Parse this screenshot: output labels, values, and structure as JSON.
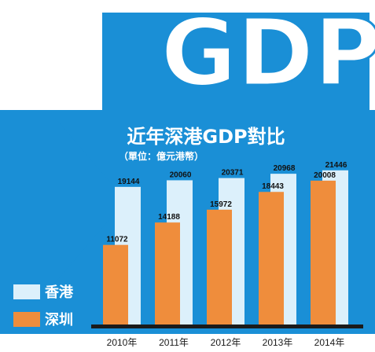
{
  "big_title": "GDP",
  "colors": {
    "background_blue": "#1a8fd6",
    "hongkong": "#dcf0fb",
    "shenzhen": "#ef8d3c",
    "baseline": "#1b1b1b",
    "text_dark": "#111111",
    "text_light": "#ffffff"
  },
  "chart_data": {
    "type": "bar",
    "title": "近年深港GDP對比",
    "subtitle": "（單位：億元港幣）",
    "categories": [
      "2010年",
      "2011年",
      "2012年",
      "2013年",
      "2014年"
    ],
    "series": [
      {
        "name": "香港",
        "values": [
          19144,
          20060,
          20371,
          20968,
          21446
        ]
      },
      {
        "name": "深圳",
        "values": [
          11072,
          14188,
          15972,
          18443,
          20008
        ]
      }
    ],
    "data_labels": {
      "香港": [
        "19144",
        "20060",
        "20371",
        "20968",
        "21446"
      ],
      "深圳": [
        "11072",
        "14188",
        "15972",
        "18443",
        "20008"
      ]
    },
    "ylim": [
      0,
      24000
    ],
    "grid": false,
    "legend": "bottom-left"
  }
}
